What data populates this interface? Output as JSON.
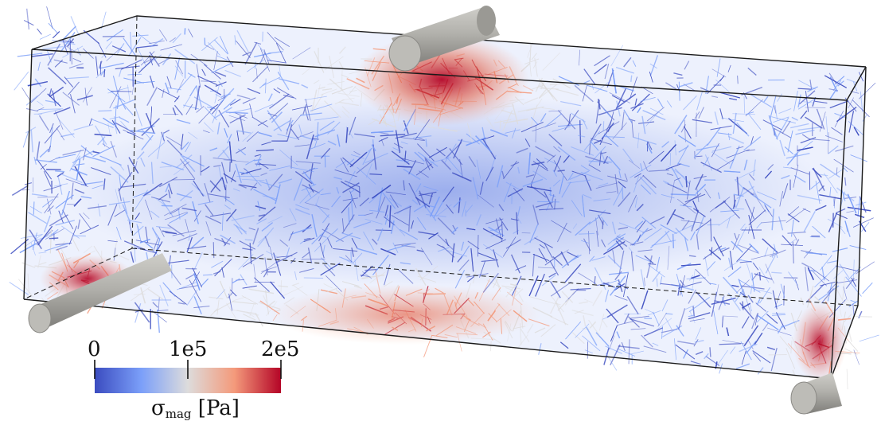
{
  "colorbar": {
    "ticks": [
      "0",
      "1e5",
      "2e5"
    ],
    "title_symbol": "σ",
    "title_subscript": "mag",
    "title_unit": "[Pa]",
    "colors": [
      "#3b4cc0",
      "#7b9ff9",
      "#dddcdc",
      "#f49a7b",
      "#b40426"
    ]
  },
  "scene": {
    "box_edge_color": "#1a1a1a",
    "support_color": "#a9a8a3",
    "cylinders": [
      "top-load-cylinder",
      "left-support-cylinder",
      "right-support-cylinder"
    ]
  }
}
